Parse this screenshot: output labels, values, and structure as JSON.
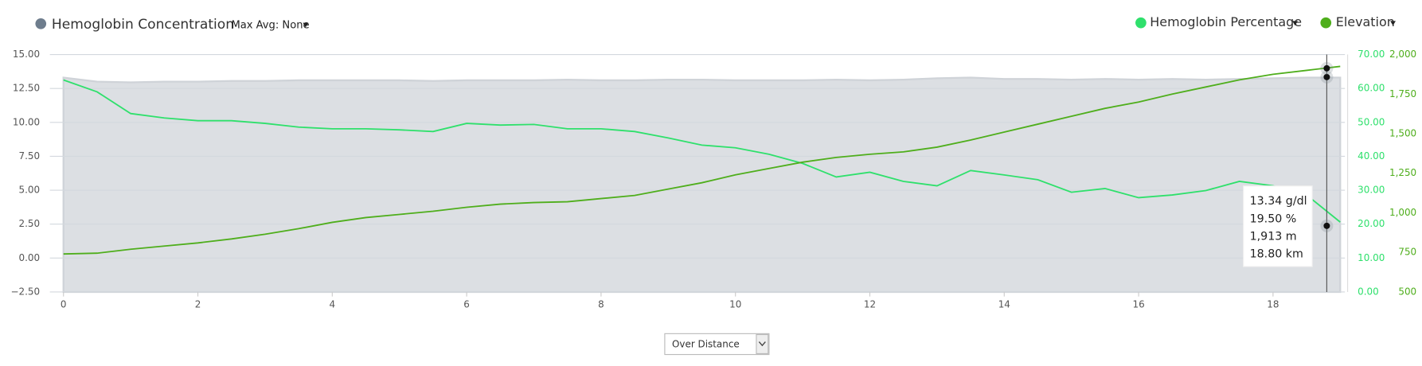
{
  "controls": {
    "max_avg": "Max Avg: None",
    "mode": "Over Distance"
  },
  "chart_data": {
    "type": "line",
    "x": [
      0,
      0.5,
      1,
      1.5,
      2,
      2.5,
      3,
      3.5,
      4,
      4.5,
      5,
      5.5,
      6,
      6.5,
      7,
      7.5,
      8,
      8.5,
      9,
      9.5,
      10,
      10.5,
      11,
      11.5,
      12,
      12.5,
      13,
      13.5,
      14,
      14.5,
      15,
      15.5,
      16,
      16.5,
      17,
      17.5,
      18,
      18.5,
      19
    ],
    "xlim": [
      0,
      19.07
    ],
    "xticks": [
      0,
      2,
      4,
      6,
      8,
      10,
      12,
      14,
      16,
      18
    ],
    "ylim": [
      -2.5,
      15
    ],
    "yticks": [
      {
        "value": -2.5,
        "label": "−2.50"
      },
      {
        "value": 0,
        "label": "0.00"
      },
      {
        "value": 2.5,
        "label": "2.50"
      },
      {
        "value": 5,
        "label": "5.00"
      },
      {
        "value": 7.5,
        "label": "7.50"
      },
      {
        "value": 10,
        "label": "10.00"
      },
      {
        "value": 12.5,
        "label": "12.50"
      },
      {
        "value": 15,
        "label": "15.00"
      }
    ],
    "y2lim": [
      0,
      70
    ],
    "y2ticks": [
      {
        "value": 0,
        "label": "0.00"
      },
      {
        "value": 10,
        "label": "10.00"
      },
      {
        "value": 20,
        "label": "20.00"
      },
      {
        "value": 30,
        "label": "30.00"
      },
      {
        "value": 40,
        "label": "40.00"
      },
      {
        "value": 50,
        "label": "50.00"
      },
      {
        "value": 60,
        "label": "60.00"
      },
      {
        "value": 70,
        "label": "70.00"
      }
    ],
    "y3lim": [
      500,
      2000
    ],
    "y3ticks": [
      500,
      750,
      {
        "value": 1000,
        "label": "1,000"
      },
      {
        "value": 1250,
        "label": "1,250"
      },
      {
        "value": 1500,
        "label": "1,500"
      },
      {
        "value": 1750,
        "label": "1,750"
      },
      {
        "value": 2000,
        "label": "2,000"
      }
    ],
    "grid": true,
    "series": [
      {
        "name": "Hemoglobin Concentration",
        "color": "#6e7d8d",
        "fill": "#dcdfe3",
        "style": "area",
        "axis": "y",
        "values": [
          13.3,
          13.0,
          12.95,
          13.0,
          13.0,
          13.05,
          13.05,
          13.1,
          13.1,
          13.1,
          13.1,
          13.05,
          13.1,
          13.1,
          13.1,
          13.15,
          13.1,
          13.1,
          13.15,
          13.15,
          13.1,
          13.1,
          13.1,
          13.15,
          13.1,
          13.15,
          13.25,
          13.3,
          13.2,
          13.2,
          13.15,
          13.2,
          13.15,
          13.2,
          13.15,
          13.2,
          13.25,
          13.3,
          13.3
        ]
      },
      {
        "name": "Hemoglobin Percentage",
        "color": "#2fe06c",
        "style": "line",
        "axis": "y2",
        "values": [
          62.5,
          59,
          52.6,
          51.3,
          50.5,
          50.5,
          49.7,
          48.6,
          48.1,
          48.1,
          47.8,
          47.3,
          49.7,
          49.2,
          49.4,
          48.1,
          48.1,
          47.3,
          45.4,
          43.3,
          42.5,
          40.6,
          37.9,
          33.9,
          35.3,
          32.6,
          31.3,
          35.8,
          34.5,
          33.1,
          29.4,
          30.5,
          27.8,
          28.6,
          29.9,
          32.6,
          31.3,
          28.6,
          20.6
        ]
      },
      {
        "name": "Elevation",
        "color": "#4fae1c",
        "style": "line",
        "axis": "y3",
        "values": [
          740,
          745,
          770,
          790,
          810,
          835,
          865,
          900,
          940,
          970,
          990,
          1010,
          1035,
          1055,
          1065,
          1070,
          1090,
          1110,
          1150,
          1190,
          1240,
          1280,
          1320,
          1350,
          1370,
          1385,
          1415,
          1460,
          1510,
          1560,
          1610,
          1660,
          1700,
          1750,
          1795,
          1840,
          1875,
          1900,
          1925
        ]
      }
    ],
    "tooltip": {
      "x": 18.8,
      "x_label": "18.80 km",
      "values": [
        13.34,
        19.5,
        1913
      ],
      "value_labels": [
        "13.34 g/dl",
        "19.50 %",
        "1,913 m"
      ]
    }
  }
}
